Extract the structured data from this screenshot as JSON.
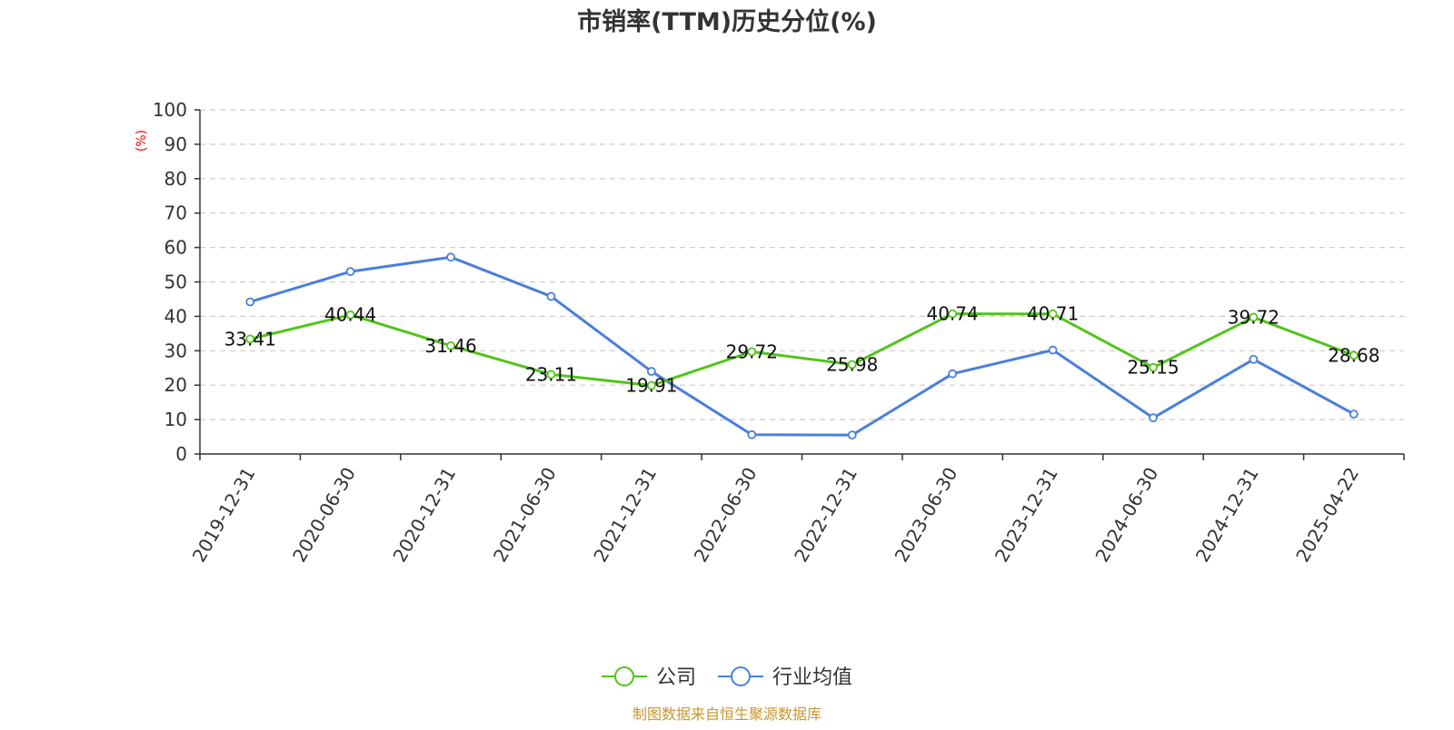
{
  "title": "市销率(TTM)历史分位(%)",
  "source": "制图数据来自恒生聚源数据库",
  "colors": {
    "company": "#52c41a",
    "industry": "#4a7fdc",
    "ylabel": "#ff0000",
    "source": "#c8962d"
  },
  "chart_data": {
    "type": "line",
    "title": "市销率(TTM)历史分位(%)",
    "xlabel": "",
    "ylabel": "(%)",
    "ylim": [
      0,
      100
    ],
    "yticks": [
      0,
      10,
      20,
      30,
      40,
      50,
      60,
      70,
      80,
      90,
      100
    ],
    "categories": [
      "2019-12-31",
      "2020-06-30",
      "2020-12-31",
      "2021-06-30",
      "2021-12-31",
      "2022-06-30",
      "2022-12-31",
      "2023-06-30",
      "2023-12-31",
      "2024-06-30",
      "2024-12-31",
      "2025-04-22"
    ],
    "grid": true,
    "legend_position": "bottom-center",
    "series": [
      {
        "name": "公司",
        "color": "#52c41a",
        "show_labels": true,
        "values": [
          33.41,
          40.44,
          31.46,
          23.11,
          19.91,
          29.72,
          25.98,
          40.74,
          40.71,
          25.15,
          39.72,
          28.68
        ]
      },
      {
        "name": "行业均值",
        "color": "#4a7fdc",
        "show_labels": false,
        "values": [
          44.2,
          53.0,
          57.2,
          45.8,
          24.0,
          5.6,
          5.5,
          23.3,
          30.2,
          10.5,
          27.5,
          11.6
        ]
      }
    ]
  }
}
